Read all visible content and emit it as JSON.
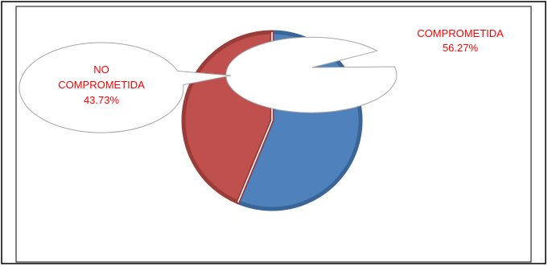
{
  "chart_data": {
    "type": "pie",
    "title": "",
    "slices": [
      {
        "label": "COMPROMETIDA",
        "value": 56.27,
        "value_label": "56.27%",
        "color": "#4F81BD"
      },
      {
        "label": "NO COMPROMETIDA",
        "label_lines": [
          "NO",
          "COMPROMETIDA"
        ],
        "value": 43.73,
        "value_label": "43.73%",
        "color": "#C0504D"
      }
    ],
    "start_angle": "top (12 o'clock), clockwise",
    "legend": "none (callout labels)",
    "label_color": "#FF0000",
    "frame_border_color": "#000000",
    "callout_fill": "#FFFFFF",
    "callout_stroke": "#A6A6A6"
  }
}
